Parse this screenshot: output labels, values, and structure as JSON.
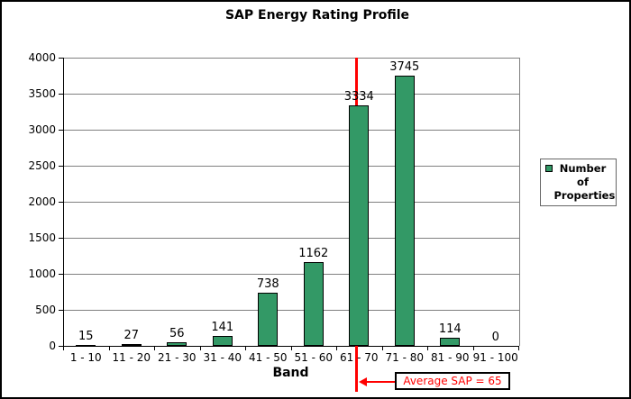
{
  "title": "SAP Energy Rating Profile",
  "chart_data": {
    "type": "bar",
    "title": "SAP Energy Rating Profile",
    "categories": [
      "1 - 10",
      "11 - 20",
      "21 - 30",
      "31 - 40",
      "41 - 50",
      "51 - 60",
      "61 - 70",
      "71 - 80",
      "81 - 90",
      "91 - 100"
    ],
    "series": [
      {
        "name": "Number of Properties",
        "values": [
          15,
          27,
          56,
          141,
          738,
          1162,
          3334,
          3745,
          114,
          0
        ]
      }
    ],
    "xlabel": "Band",
    "ylabel": "",
    "ylim": [
      0,
      4000
    ],
    "ytick_step": 500,
    "grid": true,
    "legend_position": "right",
    "data_labels": true,
    "bar_color": "#339966",
    "bar_border_color": "#000000",
    "gridline_color": "#808080"
  },
  "annotation": {
    "text": "Average SAP = 65",
    "value": 65,
    "line_color": "#FF0000",
    "text_color": "#FF0000"
  }
}
